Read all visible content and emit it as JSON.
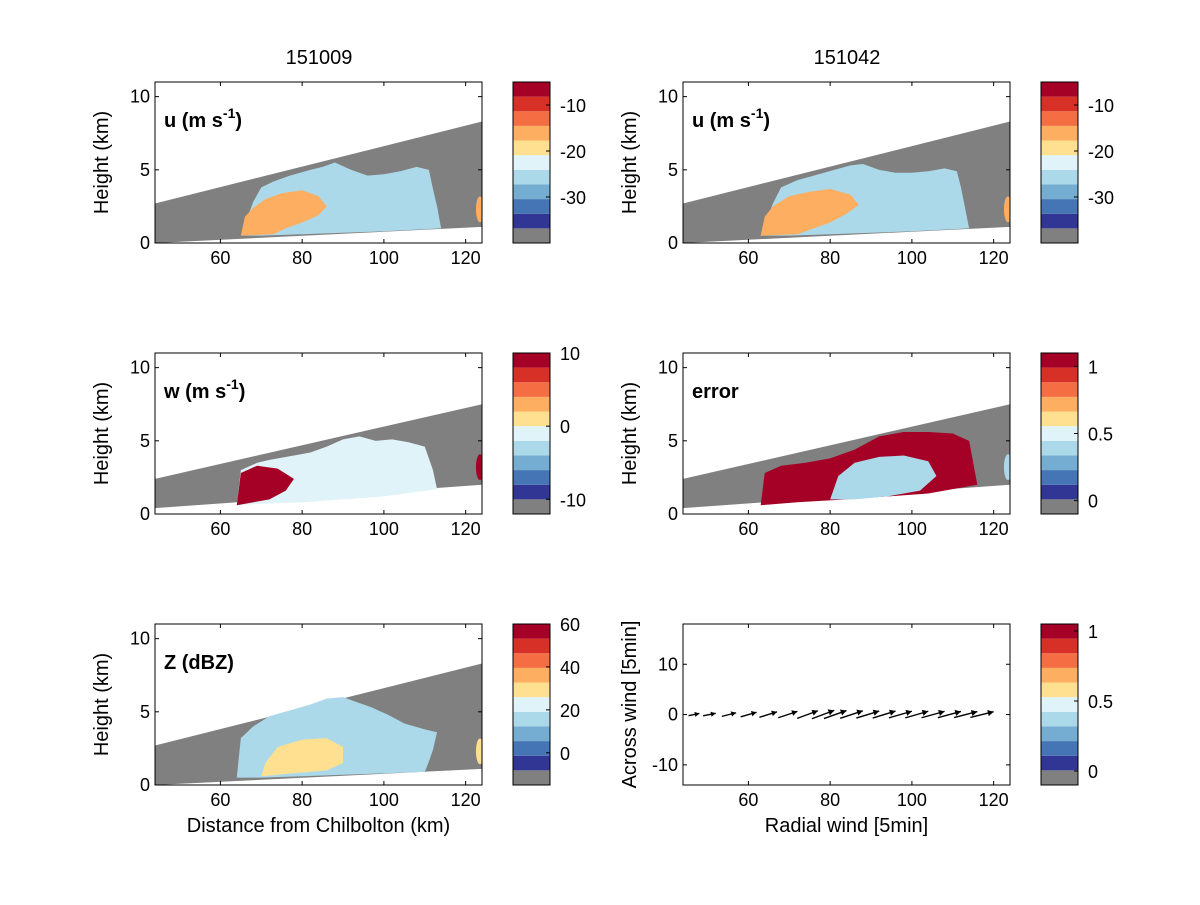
{
  "figure": {
    "column_titles": [
      "151009",
      "151042"
    ]
  },
  "colors": {
    "nodata": "#808080",
    "colormap": [
      "#313695",
      "#4575b4",
      "#74add1",
      "#abd9e9",
      "#e0f3f8",
      "#fee090",
      "#fdae61",
      "#f46d43",
      "#d73027",
      "#a50026"
    ]
  },
  "chart_data": [
    {
      "id": "u-151009",
      "type": "heatmap",
      "panel_label_main": "u (m s",
      "panel_label_sup": "-1",
      "panel_label_end": ")",
      "ylabel": "Height (km)",
      "xlabel": "",
      "xlim": [
        44,
        124
      ],
      "ylim": [
        0,
        11
      ],
      "xticks": [
        "60",
        "80",
        "100",
        "120"
      ],
      "yticks": [
        "0",
        "5",
        "10"
      ],
      "colorbar": {
        "min": -40,
        "max": -5,
        "ticks": [
          "-10",
          "-20",
          "-30"
        ],
        "tick_values": [
          -10,
          -20,
          -30
        ]
      },
      "beam_top": [
        [
          44,
          2.7
        ],
        [
          124,
          8.3
        ]
      ],
      "beam_bottom": [
        [
          44,
          0.0
        ],
        [
          124,
          1.1
        ]
      ],
      "echo_region": [
        [
          65,
          0.5
        ],
        [
          68,
          2.8
        ],
        [
          70,
          3.8
        ],
        [
          73,
          4.2
        ],
        [
          77,
          4.6
        ],
        [
          82,
          5.0
        ],
        [
          85,
          5.2
        ],
        [
          88,
          5.5
        ],
        [
          92,
          5.0
        ],
        [
          96,
          4.6
        ],
        [
          100,
          4.7
        ],
        [
          104,
          4.9
        ],
        [
          108,
          5.2
        ],
        [
          111,
          5.0
        ],
        [
          112,
          3.7
        ],
        [
          113,
          2.5
        ],
        [
          114,
          1.0
        ],
        [
          100,
          0.8
        ],
        [
          90,
          0.7
        ],
        [
          80,
          0.6
        ],
        [
          70,
          0.5
        ]
      ],
      "core_region": [
        [
          65,
          0.5
        ],
        [
          66,
          1.8
        ],
        [
          68,
          2.4
        ],
        [
          71,
          3.0
        ],
        [
          75,
          3.4
        ],
        [
          80,
          3.6
        ],
        [
          84,
          3.2
        ],
        [
          86,
          2.5
        ],
        [
          84,
          1.9
        ],
        [
          80,
          1.4
        ],
        [
          76,
          1.0
        ],
        [
          73,
          0.6
        ]
      ]
    },
    {
      "id": "u-151042",
      "type": "heatmap",
      "panel_label_main": "u (m s",
      "panel_label_sup": "-1",
      "panel_label_end": ")",
      "ylabel": "Height (km)",
      "xlabel": "",
      "xlim": [
        44,
        124
      ],
      "ylim": [
        0,
        11
      ],
      "xticks": [
        "60",
        "80",
        "100",
        "120"
      ],
      "yticks": [
        "0",
        "5",
        "10"
      ],
      "colorbar": {
        "min": -40,
        "max": -5,
        "ticks": [
          "-10",
          "-20",
          "-30"
        ],
        "tick_values": [
          -10,
          -20,
          -30
        ]
      },
      "beam_top": [
        [
          44,
          2.7
        ],
        [
          124,
          8.3
        ]
      ],
      "beam_bottom": [
        [
          44,
          0.0
        ],
        [
          124,
          1.1
        ]
      ],
      "echo_region": [
        [
          63,
          0.5
        ],
        [
          66,
          2.7
        ],
        [
          68,
          3.8
        ],
        [
          72,
          4.3
        ],
        [
          76,
          4.6
        ],
        [
          81,
          5.0
        ],
        [
          85,
          5.3
        ],
        [
          88,
          5.4
        ],
        [
          92,
          5.0
        ],
        [
          96,
          4.8
        ],
        [
          100,
          4.8
        ],
        [
          104,
          4.9
        ],
        [
          108,
          5.1
        ],
        [
          111,
          4.9
        ],
        [
          112,
          3.8
        ],
        [
          113,
          2.4
        ],
        [
          114,
          1.0
        ],
        [
          100,
          0.8
        ],
        [
          90,
          0.7
        ],
        [
          80,
          0.6
        ],
        [
          70,
          0.5
        ]
      ],
      "core_region": [
        [
          63,
          0.5
        ],
        [
          64,
          1.8
        ],
        [
          66,
          2.5
        ],
        [
          70,
          3.2
        ],
        [
          75,
          3.5
        ],
        [
          80,
          3.7
        ],
        [
          85,
          3.3
        ],
        [
          87,
          2.6
        ],
        [
          84,
          2.0
        ],
        [
          80,
          1.4
        ],
        [
          76,
          1.0
        ],
        [
          72,
          0.6
        ]
      ]
    },
    {
      "id": "w-151009",
      "type": "heatmap",
      "panel_label_main": "w (m s",
      "panel_label_sup": "-1",
      "panel_label_end": ")",
      "ylabel": "Height (km)",
      "xlabel": "",
      "xlim": [
        44,
        124
      ],
      "ylim": [
        0,
        11
      ],
      "xticks": [
        "60",
        "80",
        "100",
        "120"
      ],
      "yticks": [
        "0",
        "5",
        "10"
      ],
      "colorbar": {
        "min": -12,
        "max": 10,
        "ticks": [
          "10",
          "0",
          "-10"
        ],
        "tick_values": [
          10,
          0,
          -10
        ]
      },
      "beam_top": [
        [
          44,
          2.4
        ],
        [
          124,
          7.5
        ]
      ],
      "beam_bottom": [
        [
          44,
          0.4
        ],
        [
          124,
          2.0
        ]
      ],
      "echo_region": [
        [
          64,
          0.6
        ],
        [
          65,
          3.0
        ],
        [
          69,
          3.5
        ],
        [
          72,
          3.7
        ],
        [
          78,
          4.0
        ],
        [
          82,
          4.2
        ],
        [
          86,
          4.6
        ],
        [
          90,
          5.1
        ],
        [
          94,
          5.3
        ],
        [
          98,
          5.0
        ],
        [
          102,
          5.1
        ],
        [
          106,
          4.9
        ],
        [
          110,
          4.6
        ],
        [
          112,
          3.0
        ],
        [
          113,
          1.7
        ],
        [
          100,
          1.2
        ],
        [
          90,
          1.0
        ],
        [
          80,
          0.8
        ],
        [
          70,
          0.7
        ]
      ],
      "core_region": [
        [
          64,
          0.6
        ],
        [
          65,
          2.8
        ],
        [
          69,
          3.3
        ],
        [
          74,
          3.1
        ],
        [
          78,
          2.4
        ],
        [
          76,
          1.6
        ],
        [
          72,
          1.0
        ]
      ]
    },
    {
      "id": "error-151042",
      "type": "heatmap",
      "panel_label_main": "error",
      "panel_label_sup": "",
      "panel_label_end": "",
      "ylabel": "Height (km)",
      "xlabel": "",
      "xlim": [
        44,
        124
      ],
      "ylim": [
        0,
        11
      ],
      "xticks": [
        "60",
        "80",
        "100",
        "120"
      ],
      "yticks": [
        "0",
        "5",
        "10"
      ],
      "colorbar": {
        "min": -0.1,
        "max": 1.1,
        "ticks": [
          "1",
          "0.5",
          "0"
        ],
        "tick_values": [
          1,
          0.5,
          0
        ]
      },
      "beam_top": [
        [
          44,
          2.4
        ],
        [
          124,
          7.5
        ]
      ],
      "beam_bottom": [
        [
          44,
          0.4
        ],
        [
          124,
          2.0
        ]
      ],
      "echo_region": [
        [
          63,
          0.6
        ],
        [
          64,
          2.8
        ],
        [
          68,
          3.3
        ],
        [
          74,
          3.5
        ],
        [
          80,
          3.8
        ],
        [
          86,
          4.4
        ],
        [
          92,
          5.3
        ],
        [
          98,
          5.6
        ],
        [
          104,
          5.6
        ],
        [
          110,
          5.5
        ],
        [
          114,
          5.0
        ],
        [
          115,
          3.5
        ],
        [
          116,
          2.0
        ],
        [
          104,
          1.4
        ],
        [
          94,
          1.2
        ],
        [
          84,
          1.0
        ],
        [
          72,
          0.8
        ]
      ],
      "core_region": [
        [
          80,
          1.0
        ],
        [
          82,
          2.6
        ],
        [
          86,
          3.5
        ],
        [
          92,
          3.9
        ],
        [
          98,
          4.0
        ],
        [
          104,
          3.6
        ],
        [
          106,
          2.6
        ],
        [
          102,
          1.6
        ],
        [
          94,
          1.2
        ],
        [
          86,
          1.0
        ]
      ]
    },
    {
      "id": "Z-151009",
      "type": "heatmap",
      "panel_label_main": "Z (dBZ)",
      "panel_label_sup": "",
      "panel_label_end": "",
      "ylabel": "Height (km)",
      "xlabel": "Distance from Chilbolton (km)",
      "xlim": [
        44,
        124
      ],
      "ylim": [
        0,
        11
      ],
      "xticks": [
        "60",
        "80",
        "100",
        "120"
      ],
      "yticks": [
        "0",
        "5",
        "10"
      ],
      "colorbar": {
        "min": -15,
        "max": 60,
        "ticks": [
          "60",
          "40",
          "20",
          "0"
        ],
        "tick_values": [
          60,
          40,
          20,
          0
        ]
      },
      "beam_top": [
        [
          44,
          2.7
        ],
        [
          124,
          8.3
        ]
      ],
      "beam_bottom": [
        [
          44,
          0.0
        ],
        [
          124,
          1.1
        ]
      ],
      "echo_region": [
        [
          64,
          0.5
        ],
        [
          65,
          3.2
        ],
        [
          68,
          4.0
        ],
        [
          72,
          4.7
        ],
        [
          77,
          5.1
        ],
        [
          82,
          5.5
        ],
        [
          86,
          5.9
        ],
        [
          90,
          6.0
        ],
        [
          93,
          5.7
        ],
        [
          97,
          5.3
        ],
        [
          101,
          4.8
        ],
        [
          105,
          4.2
        ],
        [
          110,
          3.8
        ],
        [
          113,
          3.6
        ],
        [
          112,
          2.4
        ],
        [
          111,
          1.6
        ],
        [
          110,
          0.9
        ],
        [
          100,
          0.8
        ],
        [
          90,
          0.7
        ],
        [
          80,
          0.6
        ],
        [
          70,
          0.5
        ]
      ],
      "core_region": [
        [
          70,
          0.6
        ],
        [
          71,
          1.5
        ],
        [
          74,
          2.6
        ],
        [
          80,
          3.1
        ],
        [
          86,
          3.2
        ],
        [
          90,
          2.6
        ],
        [
          90,
          1.5
        ],
        [
          86,
          1.0
        ],
        [
          78,
          0.8
        ]
      ]
    },
    {
      "id": "wind-151042",
      "type": "scatter",
      "panel_label_main": "",
      "panel_label_sup": "",
      "panel_label_end": "",
      "ylabel": "Across wind [5min]",
      "xlabel": "Radial wind [5min]",
      "xlim": [
        44,
        124
      ],
      "ylim": [
        -14,
        18
      ],
      "xticks": [
        "60",
        "80",
        "100",
        "120"
      ],
      "yticks": [
        "-10",
        "0",
        "10"
      ],
      "colorbar": {
        "min": -0.1,
        "max": 1.05,
        "ticks": [
          "1",
          "0.5",
          "0"
        ],
        "tick_values": [
          1,
          0.5,
          0
        ]
      },
      "vectors": [
        {
          "x": 48,
          "len": 3.0,
          "angle": 0.2
        },
        {
          "x": 52,
          "len": 3.5,
          "angle": 0.2
        },
        {
          "x": 57,
          "len": 4.0,
          "angle": 0.25
        },
        {
          "x": 62,
          "len": 4.5,
          "angle": 0.28
        },
        {
          "x": 67,
          "len": 5.0,
          "angle": 0.3
        },
        {
          "x": 72,
          "len": 5.5,
          "angle": 0.32
        },
        {
          "x": 77,
          "len": 6.0,
          "angle": 0.35
        },
        {
          "x": 81,
          "len": 6.5,
          "angle": 0.36
        },
        {
          "x": 84,
          "len": 6.5,
          "angle": 0.34
        },
        {
          "x": 88,
          "len": 6.5,
          "angle": 0.32
        },
        {
          "x": 92,
          "len": 6.5,
          "angle": 0.3
        },
        {
          "x": 96,
          "len": 6.5,
          "angle": 0.3
        },
        {
          "x": 100,
          "len": 6.5,
          "angle": 0.28
        },
        {
          "x": 104,
          "len": 6.5,
          "angle": 0.28
        },
        {
          "x": 108,
          "len": 6.5,
          "angle": 0.27
        },
        {
          "x": 112,
          "len": 6.5,
          "angle": 0.26
        },
        {
          "x": 116,
          "len": 6.5,
          "angle": 0.25
        },
        {
          "x": 120,
          "len": 6.5,
          "angle": 0.24
        }
      ]
    }
  ]
}
